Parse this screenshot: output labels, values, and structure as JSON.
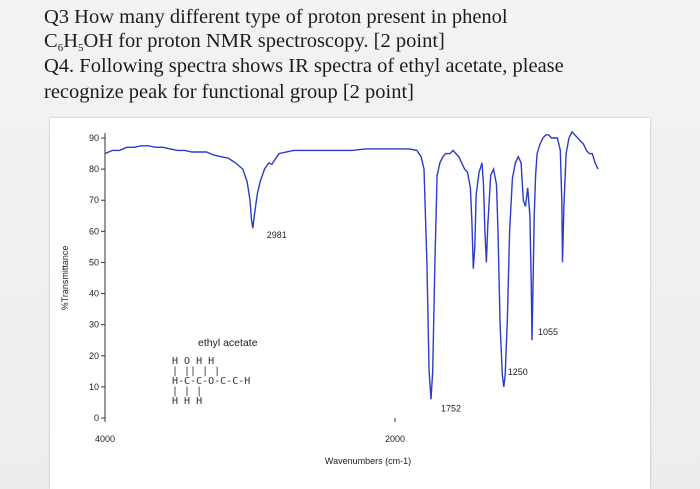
{
  "q3": {
    "line1": "Q3 How many different type of proton present in phenol",
    "line2_prefix": "C",
    "sub1": "6",
    "line2_mid1": "H",
    "sub2": "5",
    "line2_rest": "OH for proton NMR spectroscopy. [2 point]"
  },
  "q4": {
    "line1": "Q4. Following spectra shows IR spectra of ethyl acetate, please",
    "line2": "recognize peak for functional group [2 point]"
  },
  "chart_data": {
    "type": "line",
    "ylabel": "%Transmittance",
    "xlabel": "Wavenumbers (cm-1)",
    "xlim": [
      4000,
      600
    ],
    "ylim": [
      0,
      90
    ],
    "x_ticks": [
      "4000",
      "2000"
    ],
    "y_ticks": [
      "0",
      "10",
      "20",
      "30",
      "40",
      "50",
      "60",
      "70",
      "80",
      "90"
    ],
    "series_color": "#2a3cc8",
    "annotations": [
      {
        "label": "2981",
        "x": 2981,
        "y": 61
      },
      {
        "label": "1752",
        "x": 1752,
        "y": 6
      },
      {
        "label": "1250",
        "x": 1250,
        "y": 10
      },
      {
        "label": "1055",
        "x": 1055,
        "y": 25
      }
    ],
    "compound_label": "ethyl acetate",
    "structure_lines": [
      "  H O    H H",
      "  |  ||   |  |",
      "H-C-C-O-C-C-H",
      "  |       |  |",
      "  H      H H"
    ],
    "x": [
      4000,
      3950,
      3900,
      3850,
      3800,
      3750,
      3700,
      3650,
      3600,
      3550,
      3500,
      3450,
      3400,
      3350,
      3300,
      3250,
      3200,
      3150,
      3100,
      3050,
      3020,
      3000,
      2990,
      2981,
      2970,
      2950,
      2930,
      2900,
      2870,
      2850,
      2800,
      2700,
      2600,
      2500,
      2400,
      2300,
      2200,
      2100,
      2000,
      1950,
      1900,
      1850,
      1820,
      1800,
      1780,
      1765,
      1752,
      1740,
      1725,
      1710,
      1690,
      1670,
      1650,
      1620,
      1600,
      1580,
      1560,
      1540,
      1520,
      1500,
      1480,
      1470,
      1460,
      1450,
      1440,
      1420,
      1400,
      1390,
      1380,
      1370,
      1360,
      1340,
      1320,
      1300,
      1290,
      1275,
      1260,
      1250,
      1240,
      1225,
      1210,
      1190,
      1170,
      1150,
      1130,
      1115,
      1100,
      1085,
      1070,
      1060,
      1055,
      1048,
      1040,
      1030,
      1020,
      1000,
      980,
      960,
      940,
      920,
      900,
      880,
      860,
      850,
      845,
      835,
      820,
      800,
      780,
      760,
      740,
      720,
      700,
      680,
      660,
      640,
      620,
      600
    ],
    "y": [
      85,
      86,
      86,
      87,
      87,
      87.5,
      87.5,
      87,
      87,
      86.5,
      86,
      86,
      85.5,
      85.5,
      85.5,
      84.5,
      84,
      83.5,
      82,
      80,
      76,
      70,
      64,
      61,
      65,
      72,
      76,
      80,
      82,
      81.5,
      85,
      86,
      86,
      86,
      86,
      86,
      86.5,
      86.5,
      86.5,
      86.5,
      86.5,
      86,
      84,
      80,
      50,
      15,
      6,
      15,
      50,
      78,
      82,
      84,
      85,
      85,
      86,
      85,
      84,
      82,
      80,
      79,
      74,
      63,
      48,
      55,
      72,
      79,
      82,
      75,
      60,
      50,
      62,
      78,
      80,
      75,
      60,
      30,
      14,
      10,
      14,
      32,
      60,
      77,
      82,
      84,
      82,
      70,
      68,
      74,
      65,
      42,
      25,
      42,
      65,
      78,
      85,
      88,
      90,
      91,
      91,
      90,
      90,
      90,
      86,
      70,
      50,
      68,
      85,
      90,
      92,
      91,
      90,
      89,
      88,
      86,
      85,
      85,
      82,
      80
    ]
  }
}
